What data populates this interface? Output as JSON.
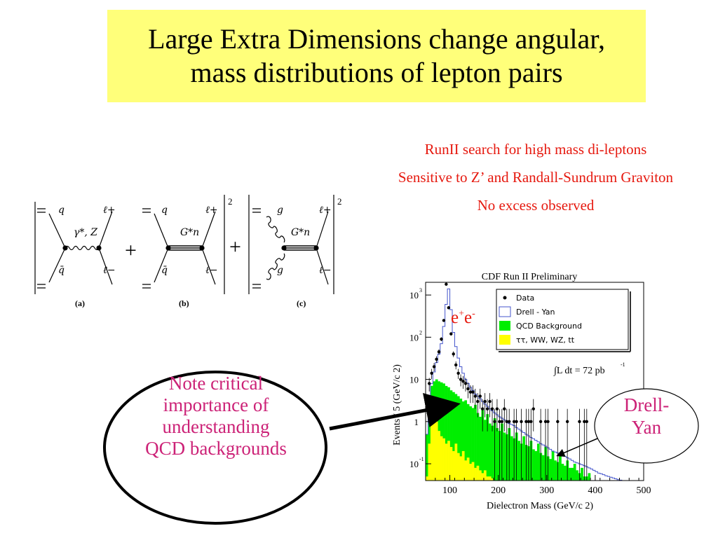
{
  "title": {
    "line1": "Large Extra Dimensions change angular,",
    "line2": "mass distributions of lepton pairs"
  },
  "notes": {
    "search": "RunII search for high mass di-leptons",
    "sensitive": "Sensitive to Z’ and Randall-Sundrum Graviton",
    "no_excess": "No excess observed"
  },
  "diagrams": {
    "a": {
      "label": "(a)",
      "in_top": "q",
      "in_bot": "q̄",
      "prop": "γ*, Z",
      "out_top": "ℓ+",
      "out_bot": "ℓ−"
    },
    "b": {
      "label": "(b)",
      "in_top": "q",
      "in_bot": "q̄",
      "prop": "G*n",
      "out_top": "ℓ+",
      "out_bot": "ℓ−"
    },
    "c": {
      "label": "(c)",
      "in_top": "g",
      "in_bot": "g",
      "prop": "G*n",
      "out_top": "ℓ+",
      "out_bot": "ℓ−"
    },
    "plus": "+",
    "power": "2"
  },
  "ellipse_note": {
    "line1": "Note critical",
    "line2": "importance of",
    "line3": "understanding",
    "line4": "QCD backgrounds"
  },
  "drell_yan_bubble": {
    "line1": "Drell-",
    "line2": "Yan"
  },
  "ee_label": {
    "base1": "e",
    "sup1": "+",
    "base2": "e",
    "sup2": "-"
  },
  "colors": {
    "title_bg": "#ffff7a",
    "red_text": "#e6190f",
    "magenta_text": "#cc2277",
    "qcd": "#00ee00",
    "tau": "#ffff00",
    "dy_line": "#4455cc"
  },
  "chart_data": {
    "type": "histogram",
    "title": "CDF Run II Preliminary",
    "xlabel": "Dielectron Mass (GeV/c 2)",
    "ylabel": "Events / 5 (GeV/c 2)",
    "xlim": [
      50,
      500
    ],
    "ylim": [
      0.04,
      2000
    ],
    "yscale": "log",
    "x_ticks": [
      "100",
      "200",
      "300",
      "400",
      "500"
    ],
    "y_ticks": [
      {
        "value": 1000,
        "label": "10",
        "exp": "3"
      },
      {
        "value": 100,
        "label": "10",
        "exp": "2"
      },
      {
        "value": 10,
        "label": "10",
        "exp": ""
      },
      {
        "value": 1,
        "label": "1",
        "exp": ""
      },
      {
        "value": 0.1,
        "label": "10",
        "exp": "-1"
      }
    ],
    "annotation": "∫L dt = 72 pb",
    "annotation_exp": "-1",
    "legend_position": "top-right",
    "legend": [
      {
        "name": "Data",
        "style": "marker"
      },
      {
        "name": "Drell - Yan",
        "style": "open"
      },
      {
        "name": "QCD Background",
        "style": "green"
      },
      {
        "name": "ττ, WW, WZ, tt",
        "style": "yellow"
      }
    ],
    "bin_width": 5,
    "bin_start": 50,
    "series": [
      {
        "name": "Drell - Yan",
        "values": [
          0.5,
          2,
          8,
          15,
          25,
          40,
          70,
          180,
          600,
          1400,
          450,
          130,
          60,
          32,
          20,
          14,
          10,
          8,
          6.5,
          5.5,
          4.5,
          4,
          3.5,
          3,
          2.6,
          2.3,
          2,
          1.8,
          1.6,
          1.45,
          1.3,
          1.2,
          1.1,
          1,
          0.9,
          0.85,
          0.8,
          0.72,
          0.66,
          0.6,
          0.55,
          0.5,
          0.46,
          0.42,
          0.39,
          0.36,
          0.33,
          0.3,
          0.28,
          0.26,
          0.24,
          0.22,
          0.2,
          0.19,
          0.18,
          0.17,
          0.16,
          0.15,
          0.14,
          0.13,
          0.12,
          0.11,
          0.105,
          0.1,
          0.095,
          0.09,
          0.085,
          0.08,
          0.075,
          0.07,
          0.065,
          0.06,
          0.058,
          0.055,
          0.052,
          0.05,
          0.048,
          0.046,
          0.044,
          0.042,
          0.041,
          0.04,
          0.04,
          0.04,
          0.04,
          0.04,
          0.04,
          0.04,
          0.04,
          0.04
        ]
      },
      {
        "name": "QCD Background",
        "values": [
          0.5,
          3,
          7,
          9,
          10,
          9,
          8.5,
          8,
          7,
          6.5,
          5.5,
          5,
          4.5,
          4,
          3.5,
          3,
          3.2,
          2.6,
          2.3,
          2.1,
          2.5,
          1.6,
          1.3,
          1.9,
          1.1,
          1.5,
          0.9,
          0.8,
          1.2,
          0.7,
          0.6,
          0.9,
          0.55,
          0.5,
          0.7,
          0.45,
          0.4,
          0.55,
          0.35,
          0.3,
          0.45,
          0.28,
          0.26,
          0.35,
          0.22,
          0.2,
          0.3,
          0.18,
          0.16,
          0.25,
          0.15,
          0.13,
          0.2,
          0.12,
          0.11,
          0.15,
          0.1,
          0.09,
          0.12,
          0.08,
          0.08,
          0.1,
          0.07,
          0.06,
          0.08,
          0.05,
          0.05,
          0.06
        ]
      },
      {
        "name": "ττ, WW, WZ, tt",
        "values": [
          0.05,
          0.3,
          1,
          1.5,
          1,
          0.6,
          0.45,
          0.4,
          0.3,
          0.35,
          0.25,
          0.2,
          0.3,
          0.18,
          0.15,
          0.2,
          0.12,
          0.14,
          0.1,
          0.11,
          0.08,
          0.09,
          0.07,
          0.06,
          0.07,
          0.05,
          0.05,
          0.045
        ]
      },
      {
        "name": "Data",
        "x": [
          57.5,
          62.5,
          67.5,
          72.5,
          77.5,
          82.5,
          87.5,
          92.5,
          97.5,
          102.5,
          107.5,
          112.5,
          117.5,
          122.5,
          127.5,
          132.5,
          137.5,
          142.5,
          147.5,
          152.5,
          157.5,
          162.5,
          167.5,
          172.5,
          177.5,
          182.5,
          187.5,
          192.5,
          197.5,
          202.5,
          207.5,
          212.5,
          217.5,
          222.5,
          232.5,
          237.5,
          247.5,
          257.5,
          262.5,
          267.5,
          272.5,
          287.5,
          297.5,
          302.5,
          322.5,
          342.5,
          367.5,
          377.5,
          382.5
        ],
        "values": [
          8,
          14,
          20,
          30,
          45,
          90,
          250,
          1800,
          500,
          120,
          40,
          22,
          14,
          10,
          9,
          8,
          6,
          5,
          5,
          4,
          3,
          4,
          2,
          3,
          2,
          3,
          2,
          1,
          2,
          1,
          1,
          2,
          1,
          1,
          1,
          1,
          1,
          1,
          1,
          1,
          2,
          1,
          1,
          1,
          1,
          1,
          1,
          1,
          1
        ]
      }
    ]
  }
}
